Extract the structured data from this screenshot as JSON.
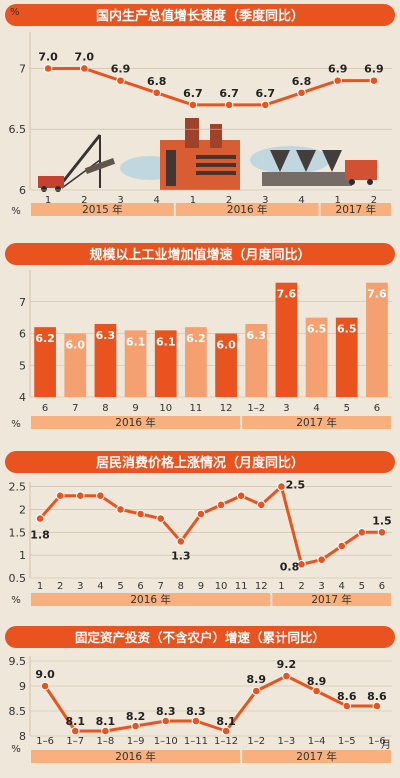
{
  "colors": {
    "background": "#efe7d9",
    "panel_header": "#e8531f",
    "line": "#e8531f",
    "bar_dark": "#e8531f",
    "bar_light": "#f4a070",
    "band": "#f7b07e",
    "axis_text": "#333333",
    "header_text": "#ffffff",
    "grid": "#c8b9a4"
  },
  "chart_data": [
    {
      "type": "line",
      "title": "国内生产总值增长速度（季度同比）",
      "y_unit_label": "%",
      "ylim": [
        6,
        7.3
      ],
      "y_ticks": [
        6,
        6.5,
        7
      ],
      "categories": [
        "1",
        "2",
        "3",
        "4",
        "1",
        "2",
        "3",
        "4",
        "1",
        "2"
      ],
      "groups": [
        {
          "label": "2015 年",
          "start": 0,
          "end": 3
        },
        {
          "label": "2016 年",
          "start": 4,
          "end": 7
        },
        {
          "label": "2017 年",
          "start": 8,
          "end": 9
        }
      ],
      "values": [
        7.0,
        7.0,
        6.9,
        6.8,
        6.7,
        6.7,
        6.7,
        6.8,
        6.9,
        6.9
      ],
      "labels": [
        "7.0",
        "7.0",
        "6.9",
        "6.8",
        "6.7",
        "6.7",
        "6.7",
        "6.8",
        "6.9",
        "6.9"
      ],
      "illustration": "industrial-skyline-illustration"
    },
    {
      "type": "bar",
      "title": "规模以上工业增加值增速（月度同比）",
      "y_unit_label": "%",
      "ylim": [
        4,
        8
      ],
      "y_ticks": [
        4,
        5,
        6,
        7
      ],
      "categories": [
        "6",
        "7",
        "8",
        "9",
        "10",
        "11",
        "12",
        "1–2",
        "3",
        "4",
        "5",
        "6"
      ],
      "groups": [
        {
          "label": "2016 年",
          "start": 0,
          "end": 6
        },
        {
          "label": "2017 年",
          "start": 7,
          "end": 11
        }
      ],
      "values": [
        6.2,
        6.0,
        6.3,
        6.1,
        6.1,
        6.2,
        6.0,
        6.3,
        7.6,
        6.5,
        6.5,
        7.6
      ],
      "labels": [
        "6.2",
        "6.0",
        "6.3",
        "6.1",
        "6.1",
        "6.2",
        "6.0",
        "6.3",
        "7.6",
        "6.5",
        "6.5",
        "7.6"
      ],
      "bar_tone": [
        "dark",
        "light",
        "dark",
        "light",
        "dark",
        "light",
        "dark",
        "light",
        "dark",
        "light",
        "dark",
        "light"
      ]
    },
    {
      "type": "line",
      "title": "居民消费价格上涨情况（月度同比）",
      "y_unit_label": "%",
      "ylim": [
        0.5,
        2.6
      ],
      "y_ticks": [
        0.5,
        1.0,
        1.5,
        2.0,
        2.5
      ],
      "categories": [
        "1",
        "2",
        "3",
        "4",
        "5",
        "6",
        "7",
        "8",
        "9",
        "10",
        "11",
        "12",
        "1",
        "2",
        "3",
        "4",
        "5",
        "6"
      ],
      "groups": [
        {
          "label": "2016 年",
          "start": 0,
          "end": 11
        },
        {
          "label": "2017 年",
          "start": 12,
          "end": 17
        }
      ],
      "values": [
        1.8,
        2.3,
        2.3,
        2.3,
        2.0,
        1.9,
        1.8,
        1.3,
        1.9,
        2.1,
        2.3,
        2.1,
        2.5,
        0.8,
        0.9,
        1.2,
        1.5,
        1.5
      ],
      "labels": [
        "1.8",
        "",
        "",
        "",
        "",
        "",
        "",
        "1.3",
        "",
        "",
        "",
        "",
        "2.5",
        "0.8",
        "",
        "",
        "",
        "1.5"
      ]
    },
    {
      "type": "line",
      "title": "固定资产投资（不含农户）增速（累计同比）",
      "y_unit_label": "%",
      "ylim": [
        8,
        9.6
      ],
      "y_ticks": [
        8,
        8.5,
        9,
        9.5
      ],
      "categories": [
        "1–6",
        "1–7",
        "1–8",
        "1–9",
        "1–10",
        "1–11",
        "1–12",
        "1–2",
        "1–3",
        "1–4",
        "1–5",
        "1–6"
      ],
      "groups": [
        {
          "label": "2016 年",
          "start": 0,
          "end": 6
        },
        {
          "label": "2017 年",
          "start": 7,
          "end": 11
        }
      ],
      "values": [
        9.0,
        8.1,
        8.1,
        8.2,
        8.3,
        8.3,
        8.1,
        8.9,
        9.2,
        8.9,
        8.6,
        8.6
      ],
      "labels": [
        "9.0",
        "8.1",
        "8.1",
        "8.2",
        "8.3",
        "8.3",
        "8.1",
        "8.9",
        "9.2",
        "8.9",
        "8.6",
        "8.6"
      ],
      "x_unit_label": "月"
    }
  ]
}
